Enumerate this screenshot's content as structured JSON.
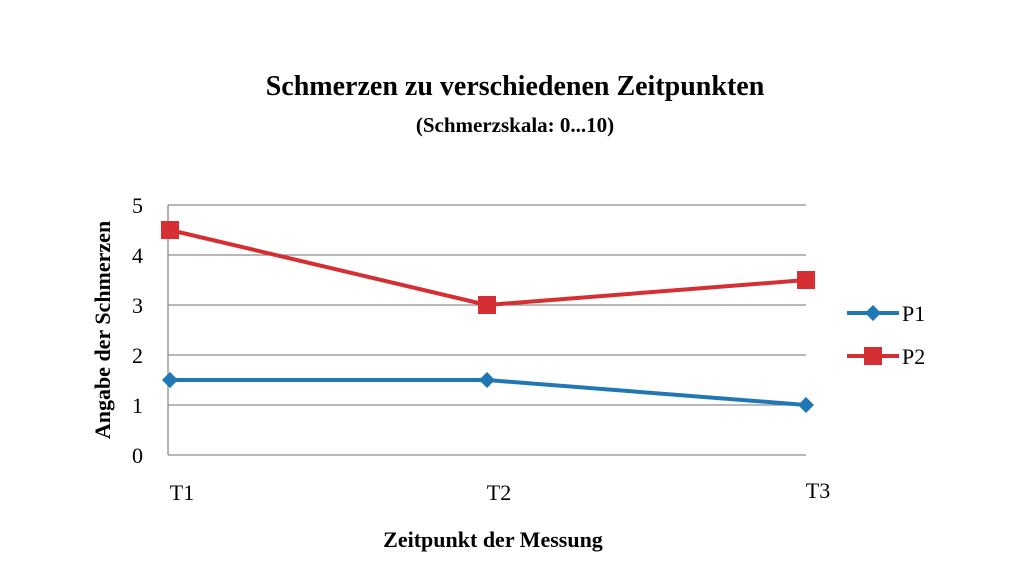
{
  "chart_data": {
    "type": "line",
    "title": "Schmerzen zu verschiedenen Zeitpunkten",
    "subtitle": "(Schmerzskala: 0...10)",
    "xlabel": "Zeitpunkt der Messung",
    "ylabel": "Angabe der Schmerzen",
    "categories": [
      "T1",
      "T2",
      "T3"
    ],
    "ylim": [
      0,
      5
    ],
    "yticks": [
      "0",
      "1",
      "2",
      "3",
      "4",
      "5"
    ],
    "grid": true,
    "legend_position": "right",
    "series": [
      {
        "name": "P1",
        "values": [
          1.5,
          1.5,
          1.0
        ],
        "color": "#1f77b4",
        "marker": "diamond"
      },
      {
        "name": "P2",
        "values": [
          4.5,
          3.0,
          3.5
        ],
        "color": "#d62f33",
        "marker": "square"
      }
    ]
  }
}
